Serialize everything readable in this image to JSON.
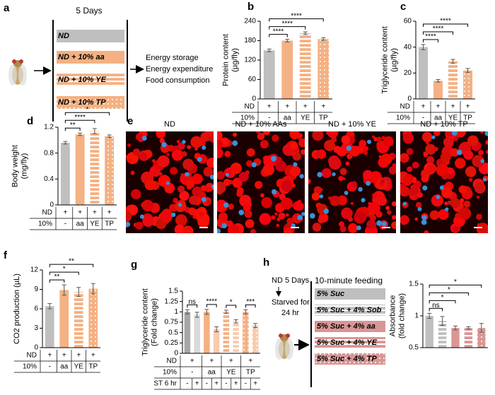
{
  "panel_a": {
    "panel": "a",
    "duration": "5 Days",
    "diets": [
      "ND",
      "ND + 10% aa",
      "ND + 10% YE",
      "ND + 10% TP"
    ],
    "outcomes": [
      "Energy storage",
      "Energy expenditure",
      "Food consumption"
    ]
  },
  "panel_e": {
    "panel": "e",
    "labels": [
      "ND",
      "ND + 10% AAs",
      "ND + 10% YE",
      "ND + 10% TP"
    ]
  },
  "panel_h": {
    "panel": "h",
    "protocol": [
      "ND 5 Days",
      "Starved for",
      "24 hr"
    ],
    "feeding_title": "10-minute feeding",
    "solutions": [
      "5% Suc",
      "5% Suc + 4% Sob",
      "5% Suc + 4% aa",
      "5% Suc + 4% YE",
      "5% Suc + 4% TP"
    ]
  },
  "chart_data": [
    {
      "type": "bar",
      "panel": "b",
      "y_label": [
        "Protein content",
        "(µg/fly)"
      ],
      "values": [
        150,
        180,
        203,
        185
      ],
      "errors": [
        4,
        4,
        4,
        4
      ],
      "colors": [
        "#bfbfbf",
        "#f4b183",
        "#f4b183",
        "#f4b183"
      ],
      "patterns": [
        "solid",
        "solid",
        "stripes",
        "dots"
      ],
      "ylim": [
        0,
        240
      ],
      "yticks": [
        0,
        60,
        120,
        180,
        240
      ],
      "comparisons": [
        {
          "label": "****",
          "groups": [
            0,
            1
          ]
        },
        {
          "label": "****",
          "groups": [
            0,
            2
          ]
        },
        {
          "label": "****",
          "groups": [
            0,
            3
          ]
        }
      ],
      "table": [
        {
          "label": "ND",
          "cells": [
            "+",
            "+",
            "+",
            "+"
          ]
        },
        {
          "label": "10%",
          "cells": [
            "-",
            "aa",
            "YE",
            "TP"
          ]
        }
      ]
    },
    {
      "type": "bar",
      "panel": "c",
      "y_label": [
        "Triglyceride content",
        "(µg/fly)"
      ],
      "values": [
        40,
        14,
        29,
        22
      ],
      "errors": [
        2,
        1,
        1.5,
        1.5
      ],
      "colors": [
        "#bfbfbf",
        "#f4b183",
        "#f4b183",
        "#f4b183"
      ],
      "patterns": [
        "solid",
        "solid",
        "stripes",
        "dots"
      ],
      "ylim": [
        0,
        60
      ],
      "yticks": [
        0,
        20,
        40,
        60
      ],
      "comparisons": [
        {
          "label": "****",
          "groups": [
            0,
            1
          ]
        },
        {
          "label": "****",
          "groups": [
            0,
            2
          ]
        },
        {
          "label": "****",
          "groups": [
            0,
            3
          ]
        }
      ],
      "table": [
        {
          "label": "ND",
          "cells": [
            "+",
            "+",
            "+",
            "+"
          ]
        },
        {
          "label": "10%",
          "cells": [
            "-",
            "aa",
            "YE",
            "TP"
          ]
        }
      ]
    },
    {
      "type": "bar",
      "panel": "d",
      "y_label": [
        "Body weight",
        "(mg/fly)"
      ],
      "values": [
        0.96,
        1.09,
        1.14,
        1.06
      ],
      "errors": [
        0.02,
        0.02,
        0.04,
        0.02
      ],
      "colors": [
        "#bfbfbf",
        "#f4b183",
        "#f4b183",
        "#f4b183"
      ],
      "patterns": [
        "solid",
        "solid",
        "stripes",
        "dots"
      ],
      "ylim": [
        0,
        1.2
      ],
      "yticks": [
        0,
        0.4,
        0.8,
        1.2
      ],
      "comparisons": [
        {
          "label": "**",
          "groups": [
            0,
            1
          ]
        },
        {
          "label": "****",
          "groups": [
            0,
            2
          ]
        },
        {
          "label": "*",
          "groups": [
            0,
            3
          ]
        }
      ],
      "table": [
        {
          "label": "ND",
          "cells": [
            "+",
            "+",
            "+",
            "+"
          ]
        },
        {
          "label": "10%",
          "cells": [
            "-",
            "aa",
            "YE",
            "TP"
          ]
        }
      ]
    },
    {
      "type": "bar",
      "panel": "f",
      "y_label": [
        "CO2 production (µL)"
      ],
      "values": [
        6.4,
        8.9,
        8.6,
        9.1
      ],
      "errors": [
        0.4,
        0.8,
        0.7,
        0.8
      ],
      "colors": [
        "#bfbfbf",
        "#f4b183",
        "#f4b183",
        "#f4b183"
      ],
      "patterns": [
        "solid",
        "solid",
        "stripes",
        "dots"
      ],
      "ylim": [
        0,
        12
      ],
      "yticks": [
        0,
        3,
        6,
        9,
        12
      ],
      "comparisons": [
        {
          "label": "**",
          "groups": [
            0,
            1
          ]
        },
        {
          "label": "*",
          "groups": [
            0,
            2
          ]
        },
        {
          "label": "**",
          "groups": [
            0,
            3
          ]
        }
      ],
      "table": [
        {
          "label": "ND",
          "cells": [
            "+",
            "+",
            "+",
            "+"
          ]
        },
        {
          "label": "10%",
          "cells": [
            "-",
            "aa",
            "YE",
            "TP"
          ]
        }
      ]
    },
    {
      "type": "bar",
      "panel": "g",
      "y_label": [
        "Triglyceride content",
        "(Fold change)"
      ],
      "values": [
        1.0,
        0.93,
        1.0,
        0.58,
        1.0,
        0.77,
        1.0,
        0.67
      ],
      "errors": [
        0.05,
        0.06,
        0.06,
        0.06,
        0.04,
        0.04,
        0.05,
        0.05
      ],
      "colors": [
        "#a6a6a6",
        "#d9d9d9",
        "#f4b183",
        "#f8cbad",
        "#f4b183",
        "#f8cbad",
        "#f4b183",
        "#f8cbad"
      ],
      "patterns": [
        "solid",
        "solid",
        "solid",
        "solid",
        "stripes",
        "stripes",
        "dots",
        "dots"
      ],
      "ylim": [
        0,
        1.5
      ],
      "yticks": [
        0,
        0.25,
        0.5,
        0.75,
        1,
        1.25,
        1.5
      ],
      "comparisons": [
        {
          "label": "ns",
          "groups": [
            0,
            1
          ]
        },
        {
          "label": "****",
          "groups": [
            2,
            3
          ]
        },
        {
          "label": "*",
          "groups": [
            4,
            5
          ]
        },
        {
          "label": "***",
          "groups": [
            6,
            7
          ]
        }
      ],
      "table": [
        {
          "label": "ND",
          "cells": [
            "+",
            "+",
            "+",
            "+"
          ]
        },
        {
          "label": "10%",
          "cells": [
            "-",
            "aa",
            "YE",
            "TP"
          ]
        },
        {
          "label": "ST 6 hr",
          "cells": [
            "-",
            "+",
            "-",
            "+",
            "-",
            "+",
            "-",
            "+"
          ]
        }
      ]
    },
    {
      "type": "bar",
      "panel": "h",
      "y_label": [
        "Absorbance",
        "(fold change)"
      ],
      "values": [
        1.0,
        0.92,
        0.81,
        0.81,
        0.81
      ],
      "errors": [
        0.04,
        0.07,
        0.03,
        0.02,
        0.07
      ],
      "colors": [
        "#bfbfbf",
        "#bfbfbf",
        "#d99694",
        "#d99694",
        "#d99694"
      ],
      "patterns": [
        "solid",
        "stripes",
        "solid",
        "stripes",
        "dots"
      ],
      "ylim": [
        0.5,
        1.5
      ],
      "yticks": [
        0.5,
        1,
        1.5
      ],
      "comparisons": [
        {
          "label": "ns",
          "groups": [
            0,
            1
          ]
        },
        {
          "label": "*",
          "groups": [
            0,
            2
          ]
        },
        {
          "label": "*",
          "groups": [
            0,
            3
          ]
        },
        {
          "label": "*",
          "groups": [
            0,
            4
          ]
        }
      ]
    }
  ]
}
